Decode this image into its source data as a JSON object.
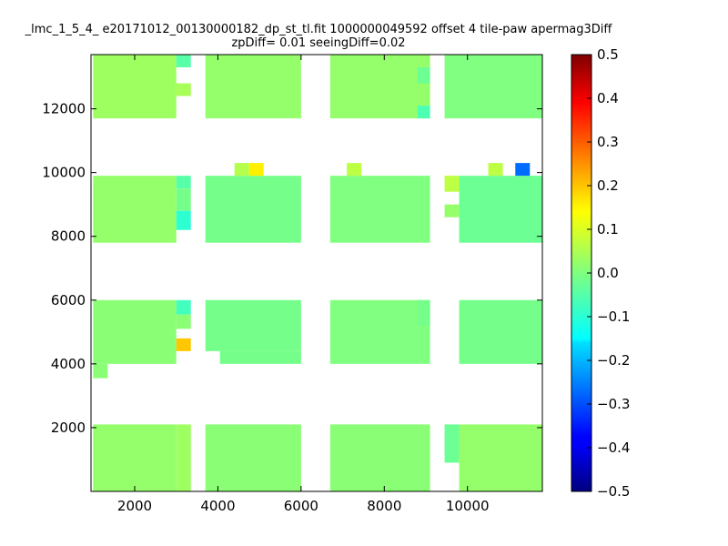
{
  "chart_data": {
    "type": "heatmap",
    "title_line1": "_lmc_1_5_4_ e20171012_00130000182_dp_st_tl.fit 1000000049592 offset 4 tile-paw apermag3Diff",
    "title_line2": "zpDiff= 0.01 seeingDiff=0.02",
    "xlim": [
      950,
      11800
    ],
    "ylim": [
      0,
      13700
    ],
    "x_ticks": [
      2000,
      4000,
      6000,
      8000,
      10000
    ],
    "y_ticks": [
      2000,
      4000,
      6000,
      8000,
      10000,
      12000
    ],
    "colorbar": {
      "colormap": "jet",
      "range": [
        -0.5,
        0.5
      ],
      "ticks": [
        -0.5,
        -0.4,
        -0.3,
        -0.2,
        -0.1,
        0.0,
        0.1,
        0.2,
        0.3,
        0.4,
        0.5
      ],
      "tick_labels": [
        "−0.5",
        "−0.4",
        "−0.3",
        "−0.2",
        "−0.1",
        "0.0",
        "0.1",
        "0.2",
        "0.3",
        "0.4",
        "0.5"
      ]
    },
    "cells": [
      {
        "x0": 1000,
        "x1": 3000,
        "y0": 0,
        "y1": 2100,
        "value": 0.02
      },
      {
        "x0": 3000,
        "x1": 3350,
        "y0": 0,
        "y1": 2100,
        "value": 0.03
      },
      {
        "x0": 3700,
        "x1": 6000,
        "y0": 0,
        "y1": 2100,
        "value": 0.01
      },
      {
        "x0": 6700,
        "x1": 9100,
        "y0": 0,
        "y1": 2100,
        "value": 0.01
      },
      {
        "x0": 9450,
        "x1": 9800,
        "y0": 900,
        "y1": 2100,
        "value": -0.02
      },
      {
        "x0": 9800,
        "x1": 11800,
        "y0": 0,
        "y1": 2100,
        "value": 0.02
      },
      {
        "x0": 1000,
        "x1": 3000,
        "y0": 4000,
        "y1": 6000,
        "value": 0.01
      },
      {
        "x0": 1000,
        "x1": 1350,
        "y0": 3550,
        "y1": 4000,
        "value": 0.01
      },
      {
        "x0": 3000,
        "x1": 3350,
        "y0": 5550,
        "y1": 6000,
        "value": -0.06
      },
      {
        "x0": 3000,
        "x1": 3350,
        "y0": 5100,
        "y1": 5550,
        "value": 0.01
      },
      {
        "x0": 3000,
        "x1": 3350,
        "y0": 4400,
        "y1": 4800,
        "value": 0.18
      },
      {
        "x0": 3700,
        "x1": 6000,
        "y0": 4400,
        "y1": 6000,
        "value": -0.01
      },
      {
        "x0": 4050,
        "x1": 6000,
        "y0": 4000,
        "y1": 4400,
        "value": -0.01
      },
      {
        "x0": 6700,
        "x1": 9100,
        "y0": 4000,
        "y1": 6000,
        "value": 0.0
      },
      {
        "x0": 8800,
        "x1": 9100,
        "y0": 5200,
        "y1": 6000,
        "value": -0.01
      },
      {
        "x0": 9800,
        "x1": 11800,
        "y0": 4000,
        "y1": 6000,
        "value": -0.01
      },
      {
        "x0": 1000,
        "x1": 3000,
        "y0": 7800,
        "y1": 9900,
        "value": 0.02
      },
      {
        "x0": 3000,
        "x1": 3350,
        "y0": 9500,
        "y1": 9900,
        "value": -0.04
      },
      {
        "x0": 3000,
        "x1": 3350,
        "y0": 8800,
        "y1": 9500,
        "value": -0.01
      },
      {
        "x0": 3000,
        "x1": 3350,
        "y0": 8200,
        "y1": 8800,
        "value": -0.08
      },
      {
        "x0": 3700,
        "x1": 6000,
        "y0": 7800,
        "y1": 9900,
        "value": -0.01
      },
      {
        "x0": 6700,
        "x1": 9100,
        "y0": 7800,
        "y1": 9900,
        "value": 0.0
      },
      {
        "x0": 9450,
        "x1": 9800,
        "y0": 9400,
        "y1": 9900,
        "value": 0.06
      },
      {
        "x0": 9450,
        "x1": 9800,
        "y0": 8600,
        "y1": 9000,
        "value": 0.02
      },
      {
        "x0": 9800,
        "x1": 11800,
        "y0": 7800,
        "y1": 9900,
        "value": -0.02
      },
      {
        "x0": 4400,
        "x1": 4750,
        "y0": 9900,
        "y1": 10300,
        "value": 0.05
      },
      {
        "x0": 4750,
        "x1": 5100,
        "y0": 9900,
        "y1": 10300,
        "value": 0.14
      },
      {
        "x0": 7100,
        "x1": 7450,
        "y0": 9900,
        "y1": 10300,
        "value": 0.06
      },
      {
        "x0": 10500,
        "x1": 10850,
        "y0": 9900,
        "y1": 10300,
        "value": 0.06
      },
      {
        "x0": 11150,
        "x1": 11500,
        "y0": 9900,
        "y1": 10300,
        "value": -0.27
      },
      {
        "x0": 1000,
        "x1": 3000,
        "y0": 11700,
        "y1": 13700,
        "value": 0.03
      },
      {
        "x0": 3000,
        "x1": 3350,
        "y0": 13300,
        "y1": 13700,
        "value": -0.04
      },
      {
        "x0": 3000,
        "x1": 3350,
        "y0": 12400,
        "y1": 12800,
        "value": 0.04
      },
      {
        "x0": 3700,
        "x1": 6000,
        "y0": 11700,
        "y1": 13700,
        "value": 0.02
      },
      {
        "x0": 6700,
        "x1": 9100,
        "y0": 11700,
        "y1": 13700,
        "value": 0.02
      },
      {
        "x0": 8800,
        "x1": 9100,
        "y0": 12800,
        "y1": 13300,
        "value": -0.02
      },
      {
        "x0": 8800,
        "x1": 9100,
        "y0": 11700,
        "y1": 12100,
        "value": -0.05
      },
      {
        "x0": 9450,
        "x1": 11800,
        "y0": 11700,
        "y1": 13700,
        "value": 0.0
      }
    ]
  }
}
